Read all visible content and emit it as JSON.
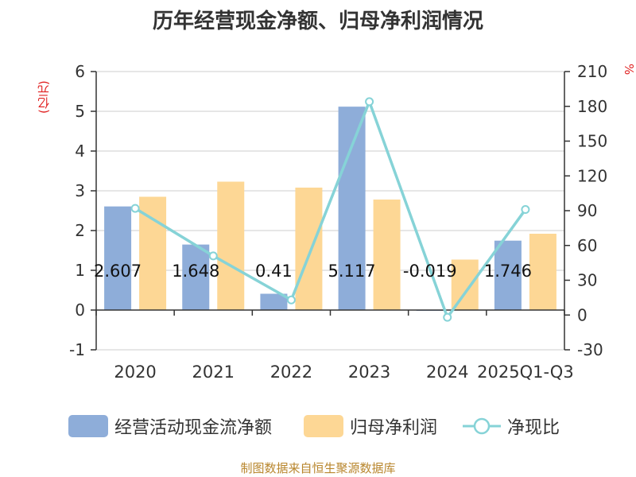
{
  "header": {
    "title": "历年经营现金净额、归母净利润情况"
  },
  "units": {
    "left": "(亿元)",
    "right": "%"
  },
  "legend": {
    "cash_flow": "经营活动现金流净额",
    "net_profit": "归母净利润",
    "ratio": "净现比"
  },
  "footer": {
    "source": "制图数据来自恒生聚源数据库"
  },
  "colors": {
    "cash_flow": "#8eadd9",
    "net_profit": "#fdd795",
    "ratio": "#86d3d7"
  },
  "chart_data": {
    "type": "bar",
    "title": "历年经营现金净额、归母净利润情况",
    "categories": [
      "2020",
      "2021",
      "2022",
      "2023",
      "2024",
      "2025Q1-Q3"
    ],
    "series": [
      {
        "name": "经营活动现金流净额",
        "axis": "left",
        "type": "bar",
        "values": [
          2.607,
          1.648,
          0.41,
          5.117,
          -0.019,
          1.746
        ],
        "labels": [
          "2.607",
          "1.648",
          "0.41",
          "5.117",
          "-0.019",
          "1.746"
        ]
      },
      {
        "name": "归母净利润",
        "axis": "left",
        "type": "bar",
        "values": [
          2.85,
          3.23,
          3.08,
          2.78,
          1.27,
          1.92
        ]
      },
      {
        "name": "净现比",
        "axis": "right",
        "type": "line",
        "values": [
          92,
          51,
          13,
          184,
          -2,
          91
        ]
      }
    ],
    "ylabel": "(亿元)",
    "ylim": [
      -1,
      6
    ],
    "yticks": [
      "-1",
      "0",
      "1",
      "2",
      "3",
      "4",
      "5",
      "6"
    ],
    "y2label": "%",
    "y2lim": [
      -30,
      210
    ],
    "y2ticks": [
      "-30",
      "0",
      "30",
      "60",
      "90",
      "120",
      "150",
      "180",
      "210"
    ],
    "grid": true,
    "legend_position": "bottom"
  }
}
